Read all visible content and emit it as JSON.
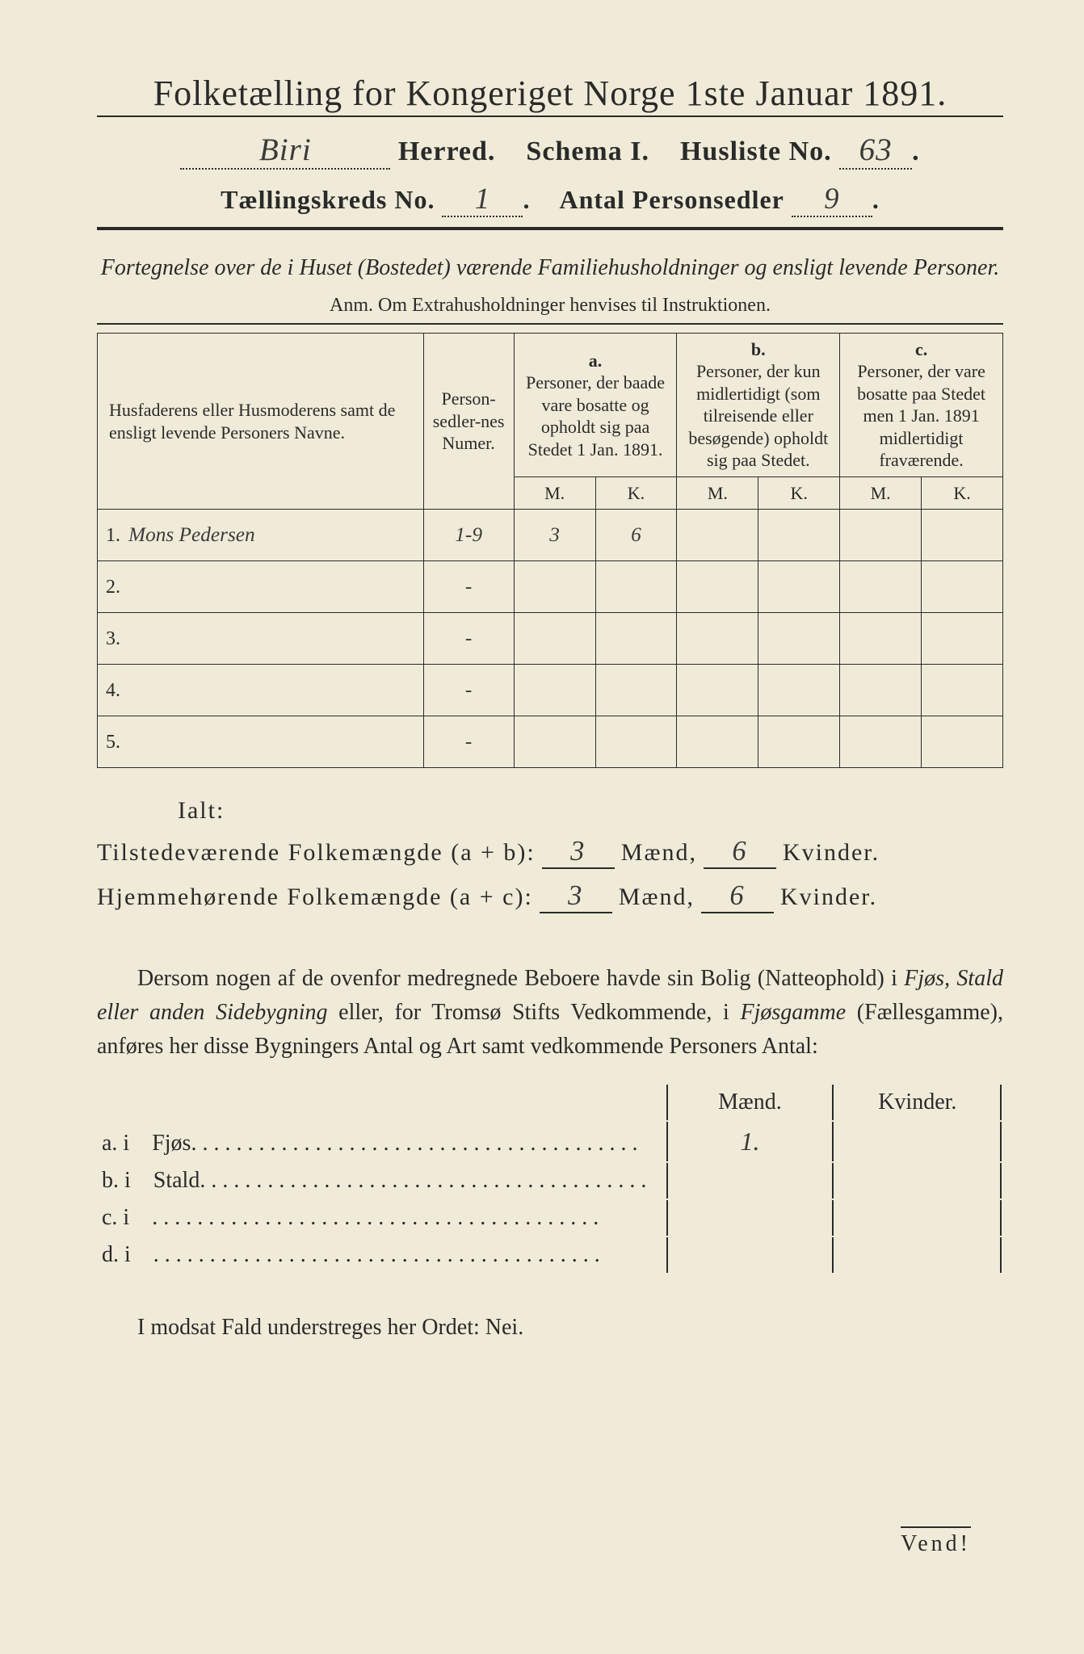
{
  "title": "Folketælling for Kongeriget Norge 1ste Januar 1891.",
  "header": {
    "herred_value": "Biri",
    "herred_label": "Herred.",
    "schema_label": "Schema I.",
    "husliste_label": "Husliste No.",
    "husliste_value": "63",
    "kreds_label": "Tællingskreds No.",
    "kreds_value": "1",
    "antal_label": "Antal Personsedler",
    "antal_value": "9"
  },
  "fortegnelse": "Fortegnelse over de i Huset (Bostedet) værende Familiehusholdninger og ensligt levende Personer.",
  "anm": "Anm.  Om Extrahusholdninger henvises til Instruktionen.",
  "table": {
    "col_name": "Husfaderens eller Husmoderens samt de ensligt levende Personers Navne.",
    "col_num": "Person-sedler-nes Numer.",
    "col_a_label": "a.",
    "col_a": "Personer, der baade vare bosatte og opholdt sig paa Stedet 1 Jan. 1891.",
    "col_b_label": "b.",
    "col_b": "Personer, der kun midlertidigt (som tilreisende eller besøgende) opholdt sig paa Stedet.",
    "col_c_label": "c.",
    "col_c": "Personer, der vare bosatte paa Stedet men 1 Jan. 1891 midlertidigt fraværende.",
    "M": "M.",
    "K": "K.",
    "rows": [
      {
        "n": "1.",
        "name": "Mons Pedersen",
        "num": "1-9",
        "aM": "3",
        "aK": "6",
        "bM": "",
        "bK": "",
        "cM": "",
        "cK": ""
      },
      {
        "n": "2.",
        "name": "",
        "num": "-",
        "aM": "",
        "aK": "",
        "bM": "",
        "bK": "",
        "cM": "",
        "cK": ""
      },
      {
        "n": "3.",
        "name": "",
        "num": "-",
        "aM": "",
        "aK": "",
        "bM": "",
        "bK": "",
        "cM": "",
        "cK": ""
      },
      {
        "n": "4.",
        "name": "",
        "num": "-",
        "aM": "",
        "aK": "",
        "bM": "",
        "bK": "",
        "cM": "",
        "cK": ""
      },
      {
        "n": "5.",
        "name": "",
        "num": "-",
        "aM": "",
        "aK": "",
        "bM": "",
        "bK": "",
        "cM": "",
        "cK": ""
      }
    ]
  },
  "totals": {
    "ialt_label": "Ialt:",
    "tilstede_label": "Tilstedeværende Folkemængde (a + b):",
    "hjemme_label": "Hjemmehørende Folkemængde (a + c):",
    "maend_label": "Mænd,",
    "kvinder_label": "Kvinder.",
    "tilstede_M": "3",
    "tilstede_K": "6",
    "hjemme_M": "3",
    "hjemme_K": "6"
  },
  "paragraph": {
    "p1a": "Dersom nogen af de ovenfor medregnede Beboere havde sin Bolig (Natteophold) i ",
    "p1b": "Fjøs, Stald eller anden Sidebygning",
    "p1c": " eller, for Tromsø Stifts Vedkommende, i ",
    "p1d": "Fjøsgamme",
    "p1e": " (Fællesgamme), anføres her disse Bygningers Antal og Art samt vedkommende Personers Antal:"
  },
  "side": {
    "maend": "Mænd.",
    "kvinder": "Kvinder.",
    "rows": [
      {
        "k": "a.  i",
        "label": "Fjøs",
        "m": "1.",
        "kv": ""
      },
      {
        "k": "b.  i",
        "label": "Stald",
        "m": "",
        "kv": ""
      },
      {
        "k": "c.  i",
        "label": "",
        "m": "",
        "kv": ""
      },
      {
        "k": "d.  i",
        "label": "",
        "m": "",
        "kv": ""
      }
    ]
  },
  "nei": "I modsat Fald understreges her Ordet: Nei.",
  "vend": "Vend!",
  "colors": {
    "paper": "#f0ebd8",
    "ink": "#2a2a2a",
    "background": "#1a1a1a"
  }
}
